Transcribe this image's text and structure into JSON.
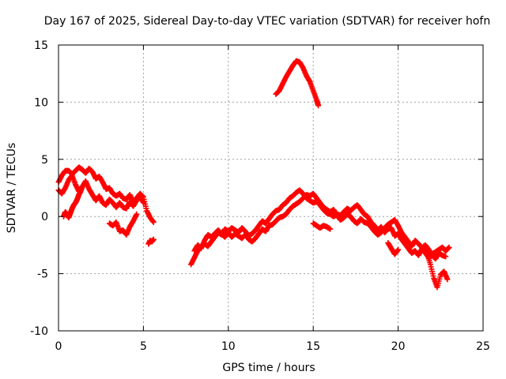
{
  "chart_data": {
    "type": "scatter",
    "title": "Day 167 of 2025, Sidereal Day-to-day VTEC variation (SDTVAR) for receiver hofn",
    "xlabel": "GPS time / hours",
    "ylabel": "SDTVAR / TECUs",
    "xlim": [
      0,
      25
    ],
    "ylim": [
      -10,
      15
    ],
    "xticks": [
      0,
      5,
      10,
      15,
      20,
      25
    ],
    "yticks": [
      -10,
      -5,
      0,
      5,
      10,
      15
    ],
    "x_tick_labels": [
      "0",
      "5",
      "10",
      "15",
      "20",
      "25"
    ],
    "y_tick_labels": [
      "-10",
      "-5",
      "0",
      "5",
      "10",
      "15"
    ],
    "grid": true,
    "marker": "+",
    "series": [
      {
        "name": "SDTVAR",
        "color": "#ff0000",
        "segments": [
          {
            "x": [
              0.0,
              0.2,
              0.4,
              0.6,
              0.8,
              1.0,
              1.2,
              1.4,
              1.6,
              1.8,
              2.0,
              2.2,
              2.4,
              2.6,
              2.8,
              3.0,
              3.2,
              3.4,
              3.6,
              3.8,
              4.0,
              4.2,
              4.4,
              4.6,
              4.8,
              5.0,
              5.2,
              5.4,
              5.6
            ],
            "y": [
              3.0,
              3.6,
              4.0,
              4.0,
              3.7,
              4.0,
              4.3,
              4.1,
              3.8,
              4.2,
              3.9,
              3.3,
              3.5,
              3.0,
              2.4,
              2.5,
              2.0,
              1.8,
              2.0,
              1.6,
              1.5,
              1.9,
              1.3,
              1.6,
              2.0,
              1.7,
              0.5,
              -0.1,
              -0.5
            ]
          },
          {
            "x": [
              0.0,
              0.2,
              0.4,
              0.6,
              0.8,
              1.0,
              1.2,
              1.4,
              1.6,
              1.8,
              2.0,
              2.2,
              2.4,
              2.6,
              2.8,
              3.0,
              3.2,
              3.4,
              3.6,
              3.8,
              4.0,
              4.2,
              4.4,
              4.6,
              4.8,
              5.0
            ],
            "y": [
              2.3,
              2.0,
              2.5,
              3.2,
              3.6,
              2.8,
              2.2,
              2.6,
              3.1,
              2.4,
              1.9,
              1.4,
              1.8,
              1.2,
              1.0,
              1.5,
              1.2,
              0.8,
              1.2,
              0.8,
              0.7,
              1.3,
              0.9,
              1.4,
              1.8,
              1.2
            ]
          },
          {
            "x": [
              0.3,
              0.4,
              0.5,
              0.6,
              0.7,
              0.8,
              0.9,
              1.0,
              1.1,
              1.2,
              1.3,
              1.4
            ],
            "y": [
              0.0,
              0.4,
              0.2,
              -0.1,
              0.3,
              0.7,
              1.0,
              1.2,
              1.5,
              1.9,
              2.2,
              2.6
            ]
          },
          {
            "x": [
              3.0,
              3.2,
              3.4,
              3.6,
              3.8,
              4.0,
              4.2,
              4.4,
              4.6
            ],
            "y": [
              -0.6,
              -0.8,
              -0.5,
              -1.3,
              -1.2,
              -1.6,
              -0.9,
              -0.4,
              0.2
            ]
          },
          {
            "x": [
              5.3,
              5.4,
              5.5,
              5.6
            ],
            "y": [
              -2.4,
              -2.1,
              -2.2,
              -2.0
            ]
          },
          {
            "x": [
              7.8,
              8.0,
              8.2,
              8.4,
              8.6,
              8.8,
              9.0,
              9.2,
              9.4,
              9.6,
              9.8,
              10.0,
              10.2,
              10.4,
              10.6,
              10.8,
              11.0,
              11.2,
              11.4,
              11.6,
              11.8,
              12.0,
              12.2,
              12.4,
              12.6,
              12.8,
              13.0,
              13.2,
              13.4,
              13.6,
              13.8,
              14.0,
              14.2,
              14.4,
              14.6,
              14.8,
              15.0,
              15.2,
              15.4,
              15.6,
              15.8,
              16.0,
              16.2,
              16.4,
              16.6,
              16.8,
              17.0,
              17.2,
              17.4,
              17.6,
              17.8,
              18.0,
              18.2,
              18.4,
              18.6,
              18.8,
              19.0,
              19.2,
              19.4,
              19.6,
              19.8,
              20.0,
              20.2,
              20.4,
              20.6,
              20.8,
              21.0,
              21.2,
              21.4,
              21.6,
              21.8,
              22.0,
              22.2,
              22.4,
              22.6,
              22.8,
              23.0
            ],
            "y": [
              -4.2,
              -3.6,
              -3.0,
              -2.6,
              -2.4,
              -2.6,
              -2.2,
              -1.8,
              -1.4,
              -1.6,
              -1.1,
              -1.3,
              -1.0,
              -1.2,
              -1.4,
              -1.0,
              -1.3,
              -1.7,
              -1.5,
              -1.2,
              -0.8,
              -0.4,
              -0.6,
              -0.2,
              0.2,
              0.5,
              0.6,
              1.0,
              1.2,
              1.6,
              1.8,
              2.1,
              2.3,
              2.0,
              1.6,
              1.4,
              1.2,
              1.3,
              1.0,
              0.6,
              0.3,
              0.2,
              0.0,
              0.2,
              0.1,
              0.4,
              0.7,
              0.5,
              0.8,
              1.0,
              0.6,
              0.2,
              0.0,
              -0.5,
              -0.8,
              -1.2,
              -0.9,
              -1.4,
              -1.1,
              -1.0,
              -1.7,
              -1.5,
              -2.0,
              -2.4,
              -2.8,
              -3.2,
              -3.0,
              -3.4,
              -2.8,
              -2.5,
              -2.9,
              -3.3,
              -3.1,
              -2.9,
              -2.7,
              -3.0,
              -2.7
            ]
          },
          {
            "x": [
              8.0,
              8.2,
              8.4,
              8.6,
              8.8,
              9.0,
              9.2,
              9.4,
              9.6,
              9.8,
              10.0,
              10.2,
              10.4,
              10.6,
              10.8,
              11.0,
              11.2,
              11.4,
              11.6,
              11.8,
              12.0,
              12.2,
              12.4,
              12.6,
              12.8,
              13.0,
              13.2,
              13.4,
              13.6,
              13.8,
              14.0,
              14.2,
              14.4,
              14.6,
              14.8,
              15.0,
              15.2,
              15.4,
              15.6,
              15.8,
              16.0,
              16.2,
              16.4,
              16.6,
              16.8,
              17.0,
              17.2,
              17.4,
              17.6,
              17.8,
              18.0,
              18.2,
              18.4,
              18.6,
              18.8,
              19.0,
              19.2,
              19.4,
              19.6,
              19.8,
              20.0,
              20.2,
              20.4,
              20.6,
              20.8,
              21.0,
              21.2,
              21.4,
              21.6,
              21.8,
              22.0,
              22.2,
              22.4,
              22.6,
              22.8
            ],
            "y": [
              -3.0,
              -2.5,
              -2.8,
              -2.1,
              -1.6,
              -1.8,
              -1.5,
              -1.2,
              -1.5,
              -1.8,
              -1.4,
              -1.8,
              -1.5,
              -1.7,
              -1.9,
              -1.6,
              -2.0,
              -2.2,
              -1.9,
              -1.5,
              -1.1,
              -1.3,
              -0.8,
              -0.7,
              -0.4,
              -0.1,
              0.0,
              0.2,
              0.6,
              0.9,
              1.1,
              1.3,
              1.6,
              1.9,
              1.8,
              2.0,
              1.6,
              1.2,
              0.8,
              0.6,
              0.4,
              0.6,
              0.1,
              -0.3,
              -0.1,
              0.2,
              0.0,
              -0.4,
              -0.6,
              -0.2,
              -0.5,
              -0.6,
              -0.9,
              -1.3,
              -1.6,
              -1.4,
              -1.0,
              -0.7,
              -0.5,
              -0.3,
              -0.8,
              -1.4,
              -1.8,
              -2.2,
              -2.6,
              -2.1,
              -2.4,
              -2.7,
              -3.2,
              -3.6,
              -3.4,
              -3.7,
              -3.2,
              -3.4,
              -3.5
            ]
          },
          {
            "x": [
              15.0,
              15.2,
              15.4,
              15.6,
              15.8,
              16.0
            ],
            "y": [
              -0.6,
              -0.8,
              -1.0,
              -0.8,
              -0.9,
              -1.1
            ]
          },
          {
            "x": [
              19.4,
              19.6,
              19.8,
              20.0
            ],
            "y": [
              -2.3,
              -2.8,
              -3.3,
              -2.9
            ]
          },
          {
            "x": [
              21.5,
              21.7,
              21.9,
              22.1,
              22.3,
              22.5,
              22.7,
              22.9
            ],
            "y": [
              -2.6,
              -3.2,
              -4.2,
              -5.4,
              -6.2,
              -5.1,
              -4.8,
              -5.5
            ]
          },
          {
            "x": [
              12.8,
              13.0,
              13.2,
              13.4,
              13.6,
              13.8,
              14.0,
              14.2,
              14.4,
              14.6,
              14.8,
              15.0,
              15.2,
              15.3
            ],
            "y": [
              10.7,
              11.0,
              11.6,
              12.2,
              12.7,
              13.2,
              13.6,
              13.5,
              13.0,
              12.3,
              11.8,
              11.0,
              10.2,
              9.7
            ]
          }
        ]
      }
    ]
  }
}
